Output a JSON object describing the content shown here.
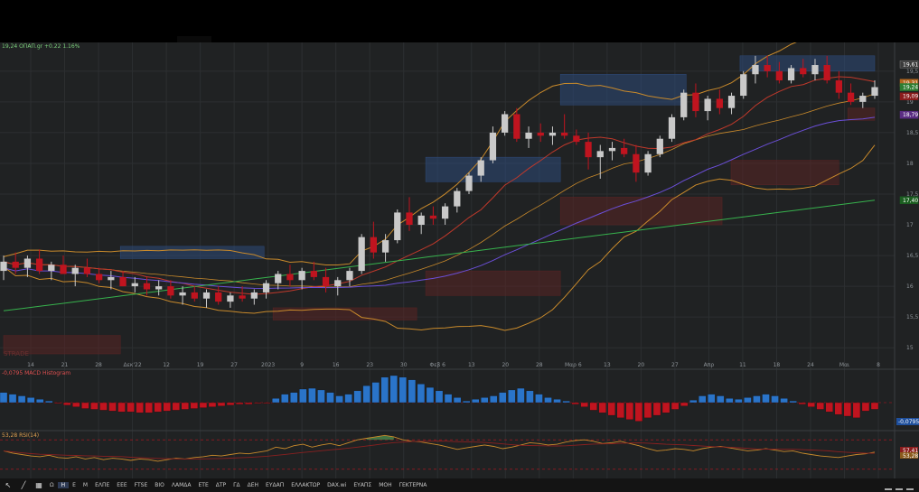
{
  "header": {
    "price_line": "19,24 ΟΠΑΠ.gr +0.22 1.16%",
    "macd_line": "-0,0795 MACD Histogram",
    "rsi_line": "53,28 RSI(14)",
    "watermark": "STRADE"
  },
  "axis": {
    "price_ticks": [
      "19,5",
      "19",
      "18,5",
      "18",
      "17,5",
      "17",
      "16,5",
      "16",
      "15,5",
      "15"
    ],
    "price_tick_values": [
      19.5,
      19,
      18.5,
      18,
      17.5,
      17,
      16.5,
      16,
      15.5,
      15
    ],
    "time_labels": [
      "14",
      "21",
      "28",
      "Δεκ'22",
      "12",
      "19",
      "27",
      "2023",
      "9",
      "16",
      "23",
      "30",
      "Φεβ 6",
      "13",
      "20",
      "28",
      "Μαρ 6",
      "13",
      "20",
      "27",
      "Απρ",
      "11",
      "18",
      "24",
      "Μαι",
      "8"
    ]
  },
  "price_tags": [
    {
      "text": "19,61",
      "value": 19.61,
      "color": "#3a3a3a",
      "border": "#777777"
    },
    {
      "text": "19,31",
      "value": 19.31,
      "color": "#b3661f",
      "border": "#b3661f"
    },
    {
      "text": "19,24",
      "value": 19.24,
      "color": "#2e7d32",
      "border": "#2e7d32"
    },
    {
      "text": "19,09",
      "value": 19.09,
      "color": "#8a1c1c",
      "border": "#8a1c1c"
    },
    {
      "text": "18,79",
      "value": 18.79,
      "color": "#5a2d82",
      "border": "#5a2d82"
    },
    {
      "text": "17,40",
      "value": 17.4,
      "color": "#1b5e20",
      "border": "#1b5e20"
    }
  ],
  "macd_tag": {
    "text": "-0,0795",
    "color": "#1e4f9c"
  },
  "rsi_tags": [
    {
      "text": "57,41",
      "color": "#8a1c1c"
    },
    {
      "text": "53,28",
      "color": "#8a5a1c"
    }
  ],
  "toolbar": {
    "symbols": [
      "Ω",
      "Η",
      "Ε",
      "Μ",
      "ΕΛΠΕ",
      "ΕΕΕ",
      "FTSE",
      "ΒΙΟ",
      "ΛΑΜΔΑ",
      "ΕΤΕ",
      "ΔΤΡ",
      "ΓΔ",
      "ΔΕΗ",
      "ΕΥΔΑΠ",
      "ΕΛΛΑΚΤΩΡ",
      "DAX.wi",
      "ΕΥΑΠΣ",
      "ΜΟΗ",
      "ΓΕΚΤΕΡΝΑ"
    ],
    "active_index": 1
  },
  "colors": {
    "up_candle": "#c9c9c9",
    "down_candle": "#c0141f",
    "ma200": "#37b24d",
    "bollinger": "#c98a2b",
    "ma_purple": "#6b4fd8",
    "ma_red": "#c0392b",
    "macd_pos": "#2a74c9",
    "macd_neg": "#c0141f",
    "zone_blue": "#2d4a7a",
    "zone_red": "#5a2424"
  },
  "chart_data": [
    {
      "type": "candlestick",
      "title": "19,24 ΟΠΑΠ.gr +0.22 1.16%",
      "ylim": [
        14.9,
        19.85
      ],
      "x_labels": [
        "14",
        "21",
        "28",
        "Δεκ'22",
        "12",
        "19",
        "27",
        "2023",
        "9",
        "16",
        "23",
        "30",
        "Φεβ 6",
        "13",
        "20",
        "28",
        "Μαρ 6",
        "13",
        "20",
        "27",
        "Απρ",
        "11",
        "18",
        "24",
        "Μαι",
        "8"
      ],
      "ohlc": [
        [
          16.25,
          16.5,
          16.1,
          16.4
        ],
        [
          16.4,
          16.55,
          16.2,
          16.3
        ],
        [
          16.3,
          16.5,
          16.15,
          16.45
        ],
        [
          16.45,
          16.6,
          16.2,
          16.25
        ],
        [
          16.25,
          16.4,
          16.1,
          16.35
        ],
        [
          16.35,
          16.5,
          16.2,
          16.2
        ],
        [
          16.2,
          16.35,
          16.0,
          16.3
        ],
        [
          16.3,
          16.45,
          16.15,
          16.2
        ],
        [
          16.2,
          16.3,
          16.05,
          16.1
        ],
        [
          16.1,
          16.25,
          15.95,
          16.15
        ],
        [
          16.15,
          16.25,
          16.0,
          16.0
        ],
        [
          16.0,
          16.15,
          15.9,
          16.05
        ],
        [
          16.05,
          16.15,
          15.85,
          15.95
        ],
        [
          15.95,
          16.1,
          15.85,
          16.0
        ],
        [
          16.0,
          16.1,
          15.8,
          15.85
        ],
        [
          15.85,
          16.0,
          15.7,
          15.9
        ],
        [
          15.9,
          16.0,
          15.75,
          15.8
        ],
        [
          15.8,
          15.95,
          15.65,
          15.9
        ],
        [
          15.9,
          16.0,
          15.7,
          15.75
        ],
        [
          15.75,
          15.9,
          15.65,
          15.85
        ],
        [
          15.85,
          16.0,
          15.75,
          15.8
        ],
        [
          15.8,
          15.95,
          15.7,
          15.9
        ],
        [
          15.9,
          16.1,
          15.8,
          16.05
        ],
        [
          16.05,
          16.25,
          15.95,
          16.2
        ],
        [
          16.2,
          16.35,
          16.0,
          16.1
        ],
        [
          16.1,
          16.3,
          15.95,
          16.25
        ],
        [
          16.25,
          16.4,
          16.1,
          16.15
        ],
        [
          16.15,
          16.3,
          15.9,
          16.0
        ],
        [
          16.0,
          16.15,
          15.85,
          16.1
        ],
        [
          16.1,
          16.3,
          16.0,
          16.25
        ],
        [
          16.25,
          16.85,
          16.2,
          16.8
        ],
        [
          16.8,
          17.05,
          16.45,
          16.55
        ],
        [
          16.55,
          16.85,
          16.4,
          16.75
        ],
        [
          16.75,
          17.25,
          16.7,
          17.2
        ],
        [
          17.2,
          17.45,
          16.9,
          17.0
        ],
        [
          17.0,
          17.2,
          16.85,
          17.15
        ],
        [
          17.15,
          17.3,
          17.0,
          17.1
        ],
        [
          17.1,
          17.35,
          17.0,
          17.3
        ],
        [
          17.3,
          17.6,
          17.2,
          17.55
        ],
        [
          17.55,
          17.85,
          17.5,
          17.8
        ],
        [
          17.8,
          18.1,
          17.7,
          18.05
        ],
        [
          18.05,
          18.6,
          18.0,
          18.5
        ],
        [
          18.5,
          18.85,
          18.45,
          18.8
        ],
        [
          18.8,
          18.9,
          18.35,
          18.4
        ],
        [
          18.4,
          18.6,
          18.25,
          18.5
        ],
        [
          18.5,
          18.65,
          18.35,
          18.45
        ],
        [
          18.45,
          18.6,
          18.3,
          18.5
        ],
        [
          18.5,
          18.8,
          18.4,
          18.45
        ],
        [
          18.45,
          18.55,
          18.3,
          18.35
        ],
        [
          18.35,
          18.5,
          17.9,
          18.1
        ],
        [
          18.1,
          18.3,
          17.75,
          18.2
        ],
        [
          18.2,
          18.35,
          18.05,
          18.25
        ],
        [
          18.25,
          18.4,
          18.1,
          18.15
        ],
        [
          18.15,
          18.3,
          17.7,
          17.85
        ],
        [
          17.85,
          18.2,
          17.8,
          18.15
        ],
        [
          18.15,
          18.45,
          18.1,
          18.4
        ],
        [
          18.4,
          18.8,
          18.35,
          18.75
        ],
        [
          18.75,
          19.2,
          18.7,
          19.15
        ],
        [
          19.15,
          19.3,
          18.75,
          18.85
        ],
        [
          18.85,
          19.1,
          18.7,
          19.05
        ],
        [
          19.05,
          19.2,
          18.8,
          18.9
        ],
        [
          18.9,
          19.15,
          18.8,
          19.1
        ],
        [
          19.1,
          19.5,
          19.05,
          19.45
        ],
        [
          19.45,
          19.75,
          19.3,
          19.6
        ],
        [
          19.6,
          19.75,
          19.4,
          19.5
        ],
        [
          19.5,
          19.65,
          19.3,
          19.35
        ],
        [
          19.35,
          19.6,
          19.3,
          19.55
        ],
        [
          19.55,
          19.7,
          19.4,
          19.45
        ],
        [
          19.45,
          19.7,
          19.35,
          19.6
        ],
        [
          19.6,
          19.75,
          19.3,
          19.35
        ],
        [
          19.35,
          19.5,
          19.05,
          19.15
        ],
        [
          19.15,
          19.3,
          18.95,
          19.0
        ],
        [
          19.0,
          19.15,
          18.9,
          19.1
        ],
        [
          19.1,
          19.35,
          19.05,
          19.24
        ]
      ],
      "ma200": [
        15.6,
        15.64,
        15.68,
        15.72,
        15.76,
        15.8,
        15.84,
        15.88,
        15.92,
        15.96,
        16.0,
        16.04,
        16.08,
        16.12,
        16.16,
        16.2,
        16.24,
        16.28,
        16.32,
        16.36,
        16.4,
        16.44,
        16.48,
        16.52,
        16.56,
        16.6,
        16.64,
        16.68,
        16.72,
        16.76,
        16.8,
        16.84,
        16.88,
        16.92,
        16.96,
        17.0,
        17.04,
        17.08,
        17.12,
        17.16,
        17.2,
        17.24,
        17.28,
        17.32,
        17.36,
        17.4
      ],
      "zones": [
        {
          "kind": "supply",
          "y0": 16.45,
          "y1": 16.65,
          "start": 13,
          "end": 29
        },
        {
          "kind": "supply",
          "y0": 17.7,
          "y1": 18.1,
          "start": 47,
          "end": 62
        },
        {
          "kind": "supply",
          "y0": 18.95,
          "y1": 19.45,
          "start": 62,
          "end": 76
        },
        {
          "kind": "supply",
          "y0": 19.5,
          "y1": 19.75,
          "start": 82,
          "end": 97
        },
        {
          "kind": "demand",
          "y0": 15.45,
          "y1": 15.65,
          "start": 30,
          "end": 46
        },
        {
          "kind": "demand",
          "y0": 15.85,
          "y1": 16.25,
          "start": 47,
          "end": 62
        },
        {
          "kind": "demand",
          "y0": 17.0,
          "y1": 17.45,
          "start": 62,
          "end": 80
        },
        {
          "kind": "demand",
          "y0": 17.65,
          "y1": 18.05,
          "start": 81,
          "end": 93
        },
        {
          "kind": "demand",
          "y0": 18.7,
          "y1": 18.9,
          "start": 94,
          "end": 97
        },
        {
          "kind": "demand",
          "y0": 14.9,
          "y1": 15.2,
          "start": 0,
          "end": 13
        }
      ]
    },
    {
      "type": "bar",
      "title": "-0,0795 MACD Histogram",
      "values": [
        0.12,
        0.1,
        0.08,
        0.06,
        0.04,
        0.02,
        -0.01,
        -0.03,
        -0.05,
        -0.07,
        -0.08,
        -0.09,
        -0.1,
        -0.11,
        -0.11,
        -0.12,
        -0.12,
        -0.11,
        -0.1,
        -0.09,
        -0.08,
        -0.07,
        -0.06,
        -0.05,
        -0.04,
        -0.03,
        -0.02,
        -0.02,
        -0.01,
        -0.01,
        0.05,
        0.1,
        0.12,
        0.16,
        0.17,
        0.15,
        0.12,
        0.08,
        0.1,
        0.14,
        0.2,
        0.24,
        0.3,
        0.32,
        0.3,
        0.27,
        0.22,
        0.18,
        0.14,
        0.1,
        0.06,
        0.02,
        0.04,
        0.06,
        0.08,
        0.12,
        0.15,
        0.17,
        0.14,
        0.1,
        0.06,
        0.04,
        0.02,
        -0.02,
        -0.05,
        -0.09,
        -0.12,
        -0.15,
        -0.18,
        -0.2,
        -0.22,
        -0.18,
        -0.15,
        -0.12,
        -0.08,
        -0.04,
        0.03,
        0.08,
        0.1,
        0.08,
        0.05,
        0.04,
        0.06,
        0.08,
        0.1,
        0.08,
        0.05,
        0.02,
        -0.02,
        -0.05,
        -0.08,
        -0.11,
        -0.14,
        -0.16,
        -0.18,
        -0.1,
        -0.0795
      ]
    },
    {
      "type": "line",
      "title": "53,28 RSI(14)",
      "ylim": [
        20,
        80
      ],
      "values": [
        55,
        52,
        50,
        48,
        47,
        49,
        46,
        45,
        47,
        44,
        46,
        43,
        45,
        44,
        42,
        44,
        43,
        41,
        43,
        45,
        44,
        46,
        47,
        49,
        48,
        50,
        52,
        51,
        53,
        55,
        60,
        58,
        62,
        64,
        60,
        63,
        65,
        62,
        66,
        70,
        72,
        74,
        76,
        74,
        70,
        68,
        67,
        65,
        63,
        60,
        57,
        59,
        61,
        63,
        61,
        58,
        60,
        63,
        66,
        65,
        63,
        64,
        67,
        69,
        70,
        68,
        65,
        66,
        68,
        65,
        62,
        58,
        55,
        56,
        58,
        57,
        55,
        58,
        60,
        61,
        59,
        57,
        55,
        56,
        58,
        56,
        54,
        55,
        52,
        50,
        48,
        47,
        46,
        48,
        50,
        51,
        53.28
      ],
      "reference_lines": [
        70,
        30
      ]
    }
  ]
}
